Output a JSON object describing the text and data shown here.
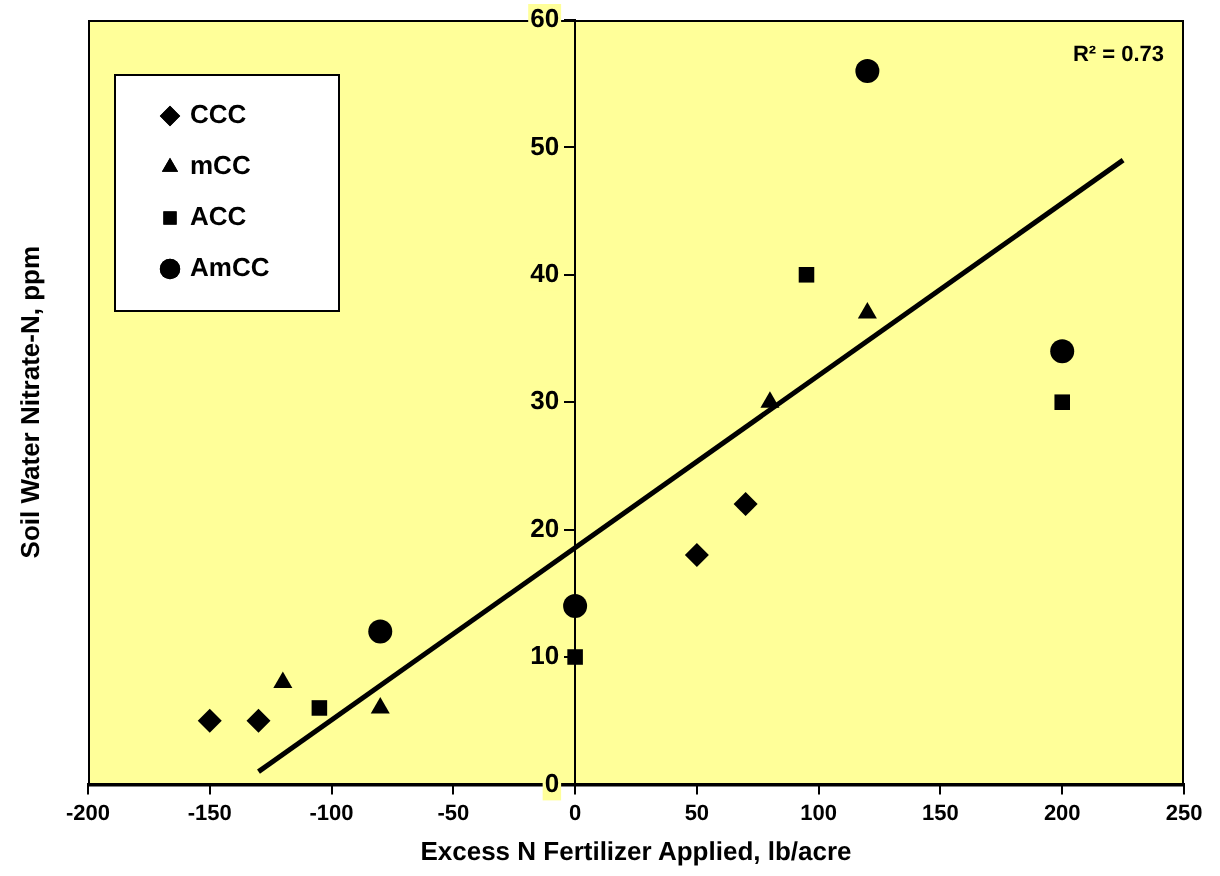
{
  "chart_data": {
    "type": "scatter",
    "xlabel": "Excess N Fertilizer Applied, lb/acre",
    "ylabel": "Soil Water Nitrate-N, ppm",
    "xlim": [
      -200,
      250
    ],
    "xticks": [
      -200,
      -150,
      -100,
      -50,
      0,
      50,
      100,
      150,
      200,
      250
    ],
    "ylim": [
      0,
      60
    ],
    "yticks": [
      0,
      10,
      20,
      30,
      40,
      50,
      60
    ],
    "grid": false,
    "legend": "top left",
    "annotations": [
      "R² = 0.73"
    ],
    "series": [
      {
        "name": "CCC",
        "color": "#000000",
        "marker": "diamond",
        "x": [
          -150,
          -130,
          50,
          70
        ],
        "values": [
          5,
          5,
          18,
          22
        ]
      },
      {
        "name": "mCC",
        "color": "#000000",
        "marker": "triangle",
        "x": [
          -120,
          -80,
          80,
          120
        ],
        "values": [
          8,
          6,
          30,
          37
        ]
      },
      {
        "name": "ACC",
        "color": "#000000",
        "marker": "square",
        "x": [
          -105,
          0,
          95,
          200
        ],
        "values": [
          6,
          10,
          40,
          30
        ]
      },
      {
        "name": "AmCC",
        "color": "#000000",
        "marker": "circle",
        "x": [
          -80,
          0,
          120,
          200
        ],
        "values": [
          12,
          14,
          56,
          34
        ]
      },
      {
        "type": "line",
        "color": "#000000",
        "marker": "none",
        "x": [
          -130,
          225
        ],
        "values": [
          1,
          49
        ]
      }
    ]
  }
}
